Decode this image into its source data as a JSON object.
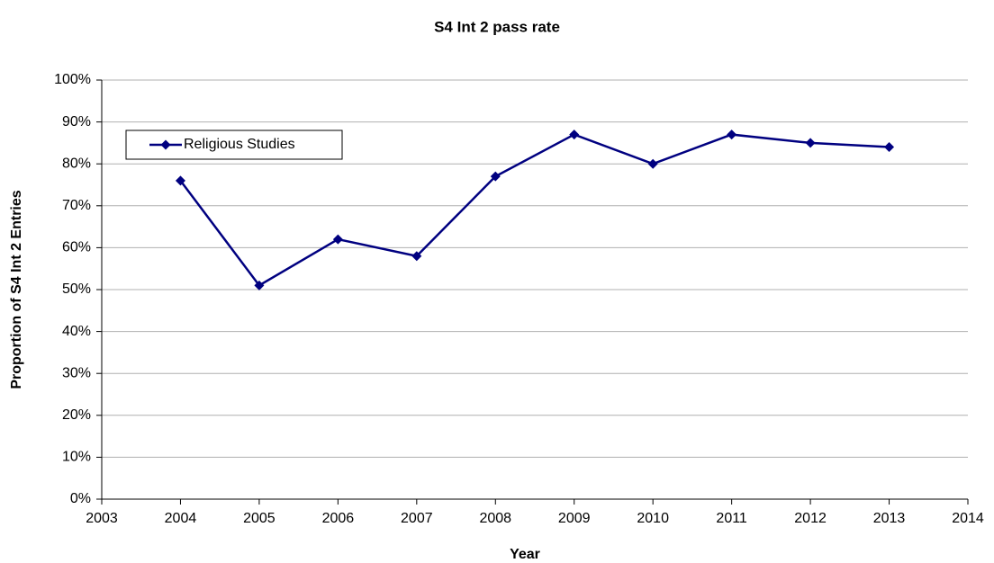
{
  "chart_data": {
    "type": "line",
    "title": "S4 Int 2 pass rate",
    "x_label": "Year",
    "y_label": "Proportion of S4 Int 2 Entries",
    "x": [
      2004,
      2005,
      2006,
      2007,
      2008,
      2009,
      2010,
      2011,
      2012,
      2013
    ],
    "series": [
      {
        "name": "Religious Studies",
        "color": "#000080",
        "values": [
          76,
          51,
          62,
          58,
          77,
          87,
          80,
          87,
          85,
          84
        ]
      }
    ],
    "xlim": [
      2003,
      2014
    ],
    "xticks": [
      2003,
      2004,
      2005,
      2006,
      2007,
      2008,
      2009,
      2010,
      2011,
      2012,
      2013,
      2014
    ],
    "ylim": [
      0,
      100
    ],
    "yticks": [
      {
        "value": 0,
        "label": "0%"
      },
      {
        "value": 10,
        "label": "10%"
      },
      {
        "value": 20,
        "label": "20%"
      },
      {
        "value": 30,
        "label": "30%"
      },
      {
        "value": 40,
        "label": "40%"
      },
      {
        "value": 50,
        "label": "50%"
      },
      {
        "value": 60,
        "label": "60%"
      },
      {
        "value": 70,
        "label": "70%"
      },
      {
        "value": 80,
        "label": "80%"
      },
      {
        "value": 90,
        "label": "90%"
      },
      {
        "value": 100,
        "label": "100%"
      }
    ],
    "grid": true,
    "legend": "upper left"
  }
}
